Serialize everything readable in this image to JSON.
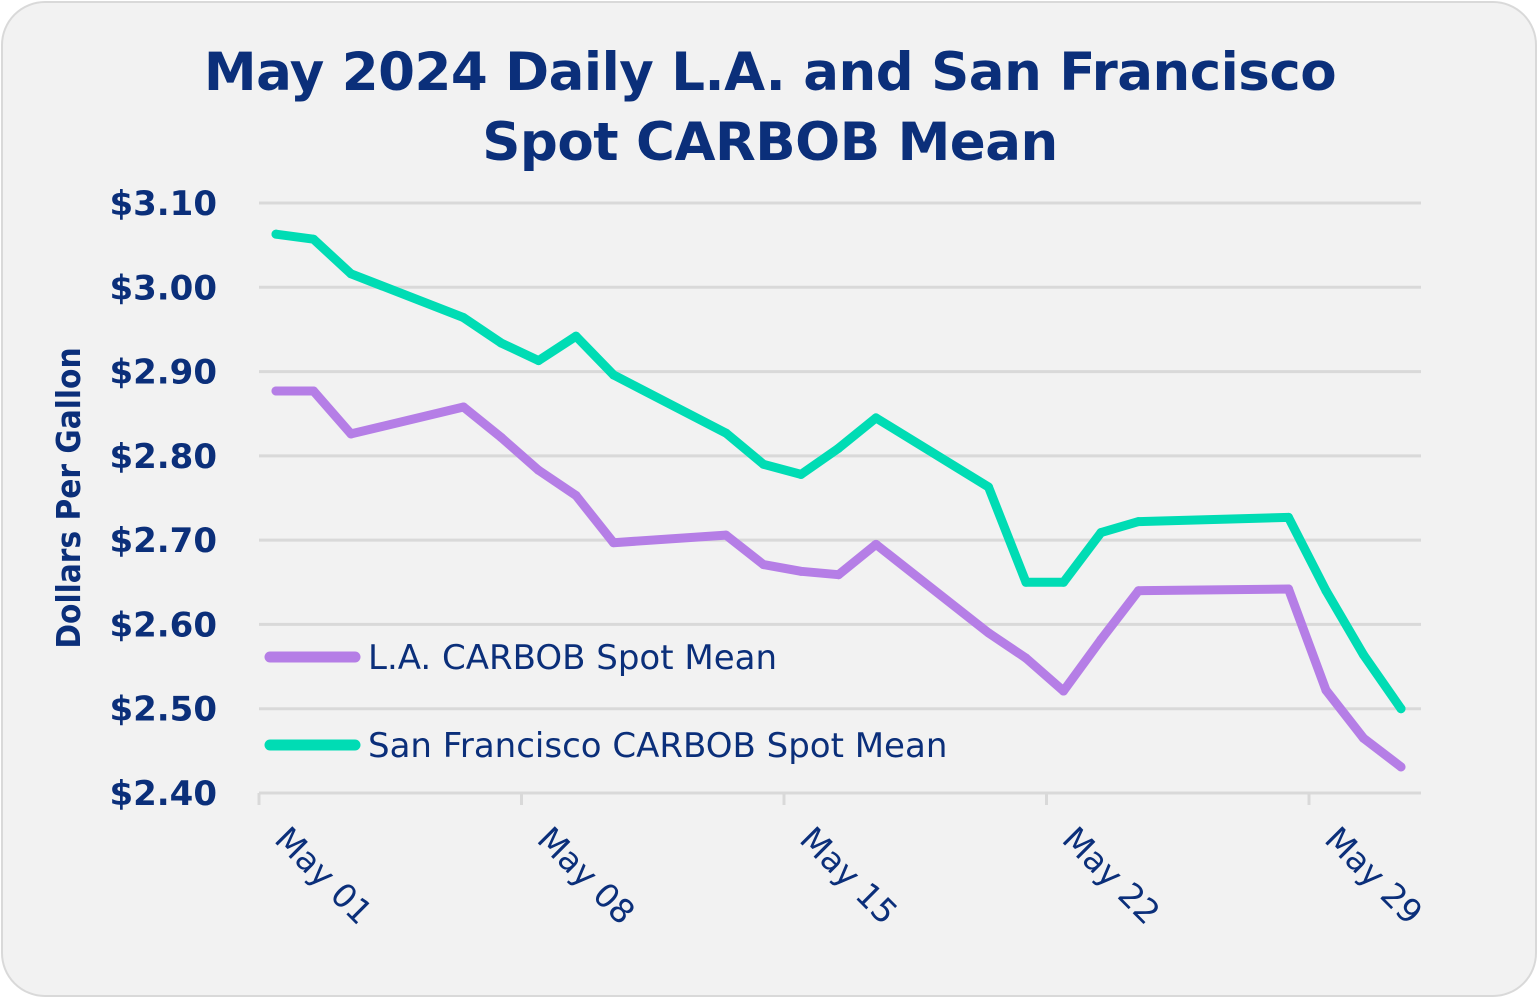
{
  "chart_data": {
    "type": "line",
    "title": [
      "May 2024 Daily L.A. and San Francisco",
      "Spot CARBOB Mean"
    ],
    "xlabel": "",
    "ylabel": "Dollars Per Gallon",
    "ylim": [
      2.4,
      3.1
    ],
    "yticks": [
      3.1,
      3.0,
      2.9,
      2.8,
      2.7,
      2.6,
      2.5,
      2.4
    ],
    "ytick_labels": [
      "$3.10",
      "$3.00",
      "$2.90",
      "$2.80",
      "$2.70",
      "$2.60",
      "$2.50",
      "$2.40"
    ],
    "xlim_days": [
      1,
      31
    ],
    "xticks_days": [
      1,
      8,
      15,
      22,
      29
    ],
    "xtick_labels": [
      "May 01",
      "May 08",
      "May 15",
      "May 22",
      "May 29"
    ],
    "grid": "horizontal",
    "legend_position": "lower-left",
    "x": [
      1,
      2,
      3,
      6,
      7,
      8,
      9,
      10,
      13,
      14,
      15,
      16,
      17,
      20,
      21,
      22,
      23,
      24,
      28,
      29,
      30,
      31
    ],
    "series": [
      {
        "name": "L.A. CARBOB Spot Mean",
        "color": "#b57ee6",
        "values": [
          2.877,
          2.877,
          2.826,
          2.858,
          2.822,
          2.783,
          2.753,
          2.697,
          2.706,
          2.671,
          2.663,
          2.659,
          2.695,
          2.59,
          2.56,
          2.521,
          2.582,
          2.64,
          2.642,
          2.522,
          2.465,
          2.431
        ]
      },
      {
        "name": "San Francisco CARBOB Spot Mean",
        "color": "#00dcb4",
        "values": [
          3.063,
          3.057,
          3.016,
          2.964,
          2.934,
          2.913,
          2.942,
          2.896,
          2.827,
          2.79,
          2.778,
          2.809,
          2.845,
          2.763,
          2.65,
          2.65,
          2.709,
          2.722,
          2.727,
          2.64,
          2.564,
          2.5
        ]
      }
    ]
  },
  "colors": {
    "text": "#0b2f7a",
    "grid": "#d9d9d9",
    "background": "#f2f2f2"
  }
}
